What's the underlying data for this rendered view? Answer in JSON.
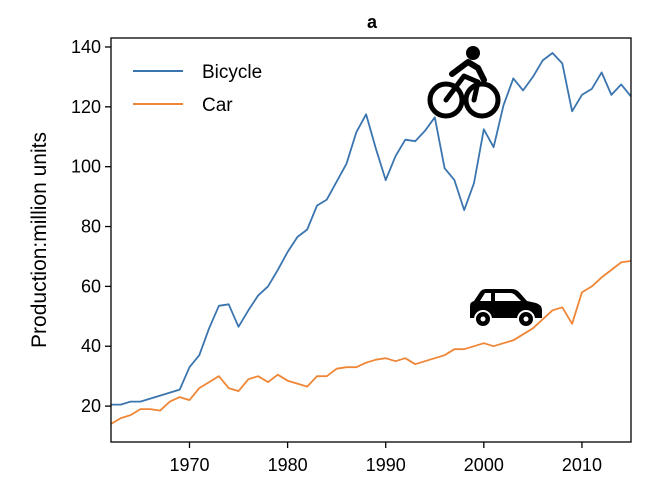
{
  "chart_data": {
    "type": "line",
    "title": "a",
    "xlabel": "",
    "ylabel": "Production:million units",
    "xlim": [
      1962,
      2015
    ],
    "ylim": [
      8,
      143
    ],
    "xticks": [
      1970,
      1980,
      1990,
      2000,
      2010
    ],
    "yticks": [
      20,
      40,
      60,
      80,
      100,
      120,
      140
    ],
    "grid": false,
    "legend_position": "top-left",
    "icons": [
      "bicycle-icon",
      "car-icon"
    ],
    "series": [
      {
        "name": "Bicycle",
        "color": "#3b75af",
        "x": [
          1962,
          1963,
          1964,
          1965,
          1966,
          1967,
          1968,
          1969,
          1970,
          1971,
          1972,
          1973,
          1974,
          1975,
          1976,
          1977,
          1978,
          1979,
          1980,
          1981,
          1982,
          1983,
          1984,
          1985,
          1986,
          1987,
          1988,
          1989,
          1990,
          1991,
          1992,
          1993,
          1994,
          1995,
          1996,
          1997,
          1998,
          1999,
          2000,
          2001,
          2002,
          2003,
          2004,
          2005,
          2006,
          2007,
          2008,
          2009,
          2010,
          2011,
          2012,
          2013,
          2014,
          2015
        ],
        "values": [
          20.5,
          20.5,
          21.5,
          21.5,
          22.5,
          23.5,
          24.5,
          25.5,
          33,
          37,
          46,
          53.5,
          54,
          46.5,
          52,
          57,
          60,
          65.5,
          71.5,
          76.5,
          79,
          87,
          89,
          95,
          101,
          111.5,
          117.5,
          106,
          95.5,
          103.5,
          109,
          108.5,
          112,
          116.5,
          99.5,
          95.5,
          85.5,
          94.5,
          112.5,
          106.5,
          120.5,
          129.5,
          125.5,
          130,
          135.5,
          138,
          134.5,
          118.5,
          124,
          126,
          131.5,
          124,
          127.5,
          123.5
        ]
      },
      {
        "name": "Car",
        "color": "#ef8636",
        "x": [
          1962,
          1963,
          1964,
          1965,
          1966,
          1967,
          1968,
          1969,
          1970,
          1971,
          1972,
          1973,
          1974,
          1975,
          1976,
          1977,
          1978,
          1979,
          1980,
          1981,
          1982,
          1983,
          1984,
          1985,
          1986,
          1987,
          1988,
          1989,
          1990,
          1991,
          1992,
          1993,
          1994,
          1995,
          1996,
          1997,
          1998,
          1999,
          2000,
          2001,
          2002,
          2003,
          2004,
          2005,
          2006,
          2007,
          2008,
          2009,
          2010,
          2011,
          2012,
          2013,
          2014,
          2015
        ],
        "values": [
          14,
          16,
          17,
          19,
          19,
          18.5,
          21.5,
          23,
          22,
          26,
          28,
          30,
          26,
          25,
          29,
          30,
          28,
          30.5,
          28.5,
          27.5,
          26.5,
          30,
          30,
          32.5,
          33,
          33,
          34.5,
          35.5,
          36,
          35,
          36,
          34,
          35,
          36,
          37,
          39,
          39,
          40,
          41,
          40,
          41,
          42,
          44,
          46,
          49,
          52,
          53,
          47.5,
          58,
          60,
          63,
          65.5,
          68,
          68.5
        ]
      }
    ]
  }
}
